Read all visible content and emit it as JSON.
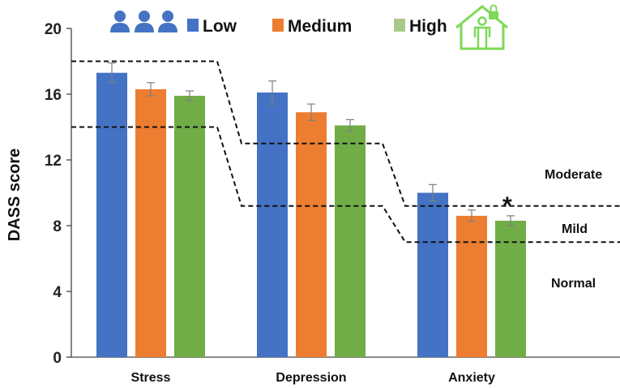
{
  "chart_data": {
    "type": "bar",
    "title": "",
    "xlabel": "",
    "ylabel": "DASS score",
    "ylim": [
      0,
      20
    ],
    "yticks": [
      0,
      4,
      8,
      12,
      16,
      20
    ],
    "grid": false,
    "legend_position": "top",
    "categories": [
      "Stress",
      "Depression",
      "Anxiety"
    ],
    "series": [
      {
        "name": "Low",
        "values": [
          17.3,
          16.1,
          10.0
        ],
        "errors": [
          0.6,
          0.7,
          0.5
        ],
        "color": "#4472C4"
      },
      {
        "name": "Medium",
        "values": [
          16.3,
          14.9,
          8.6
        ],
        "errors": [
          0.4,
          0.5,
          0.35
        ],
        "color": "#ED7D31"
      },
      {
        "name": "High",
        "values": [
          15.9,
          14.1,
          8.3
        ],
        "errors": [
          0.3,
          0.35,
          0.3
        ],
        "color": "#70AD47"
      }
    ],
    "thresholds": {
      "upper": [
        18,
        13,
        9.2
      ],
      "lower": [
        14,
        9.2,
        7.0
      ]
    },
    "zone_labels": [
      "Moderate",
      "Mild",
      "Normal"
    ],
    "annotation": "*",
    "legend_icons": {
      "low": "people-icon",
      "high": "house-person-lock-icon",
      "people_color": "#4472C4",
      "house_color": "#7ED957"
    }
  }
}
